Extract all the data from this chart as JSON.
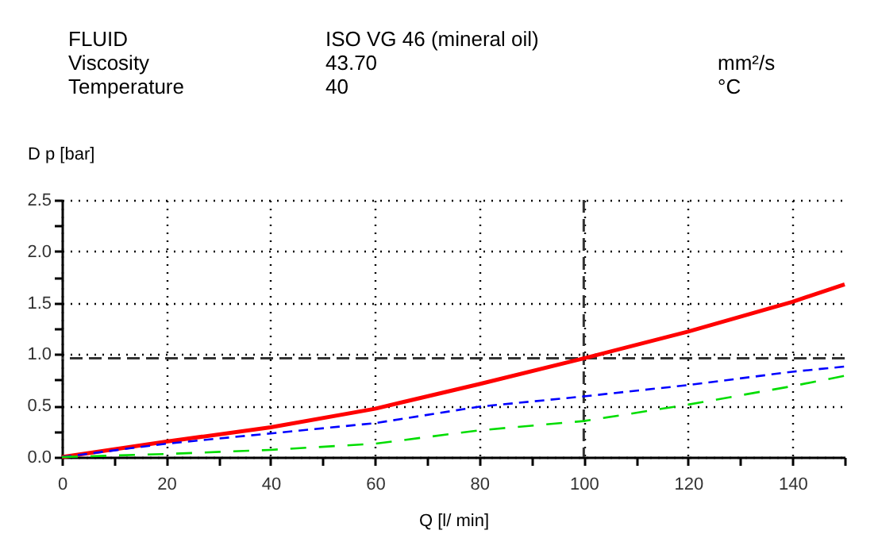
{
  "chart_data": {
    "type": "line",
    "annotations": [
      "FLUID",
      "ISO VG 46 (mineral oil)",
      "Viscosity",
      "43.70",
      "mm²/s",
      "Temperature",
      "40",
      "°C"
    ],
    "xlabel": "Q [l/ min]",
    "ylabel": "D p [bar]",
    "x": [
      0,
      20,
      40,
      60,
      80,
      100,
      120,
      140,
      150
    ],
    "series": [
      {
        "color": "#ff0000",
        "line_style": "solid",
        "values": [
          0,
          0.15,
          0.29,
          0.47,
          0.71,
          0.96,
          1.22,
          1.51,
          1.68
        ]
      },
      {
        "color": "#0000ff",
        "line_style": "dashed",
        "values": [
          0,
          0.13,
          0.23,
          0.33,
          0.49,
          0.59,
          0.7,
          0.83,
          0.88
        ]
      },
      {
        "color": "#00dd00",
        "line_style": "dashed",
        "values": [
          0,
          0.03,
          0.07,
          0.13,
          0.26,
          0.35,
          0.51,
          0.69,
          0.79
        ]
      }
    ],
    "xlim": [
      0,
      150
    ],
    "ylim": [
      0,
      2.5
    ],
    "xticks": [
      0,
      {
        "value": 10,
        "label": null
      },
      20,
      {
        "value": 30,
        "label": null
      },
      40,
      {
        "value": 50,
        "label": null
      },
      60,
      {
        "value": 70,
        "label": null
      },
      80,
      {
        "value": 90,
        "label": null
      },
      100,
      {
        "value": 110,
        "label": null
      },
      120,
      {
        "value": 130,
        "label": null
      },
      140,
      {
        "value": 150,
        "label": null
      }
    ],
    "yticks": [
      {
        "value": 0,
        "label": "0.0"
      },
      {
        "value": 0.25,
        "label": null
      },
      {
        "value": 0.5,
        "label": "0.5"
      },
      {
        "value": 0.75,
        "label": null
      },
      {
        "value": 1,
        "label": "1.0"
      },
      {
        "value": 1.25,
        "label": null
      },
      {
        "value": 1.5,
        "label": "1.5"
      },
      {
        "value": 1.75,
        "label": null
      },
      {
        "value": 2,
        "label": "2.0"
      },
      {
        "value": 2.25,
        "label": null
      },
      {
        "value": 2.5,
        "label": "2.5"
      }
    ],
    "ref_lines": [
      {
        "axis": "y",
        "value": 0.96,
        "color": "#333333",
        "line_style": "dashed"
      },
      {
        "axis": "x",
        "value": 100,
        "color": "#333333",
        "line_style": "dashed"
      }
    ],
    "grid": true
  }
}
